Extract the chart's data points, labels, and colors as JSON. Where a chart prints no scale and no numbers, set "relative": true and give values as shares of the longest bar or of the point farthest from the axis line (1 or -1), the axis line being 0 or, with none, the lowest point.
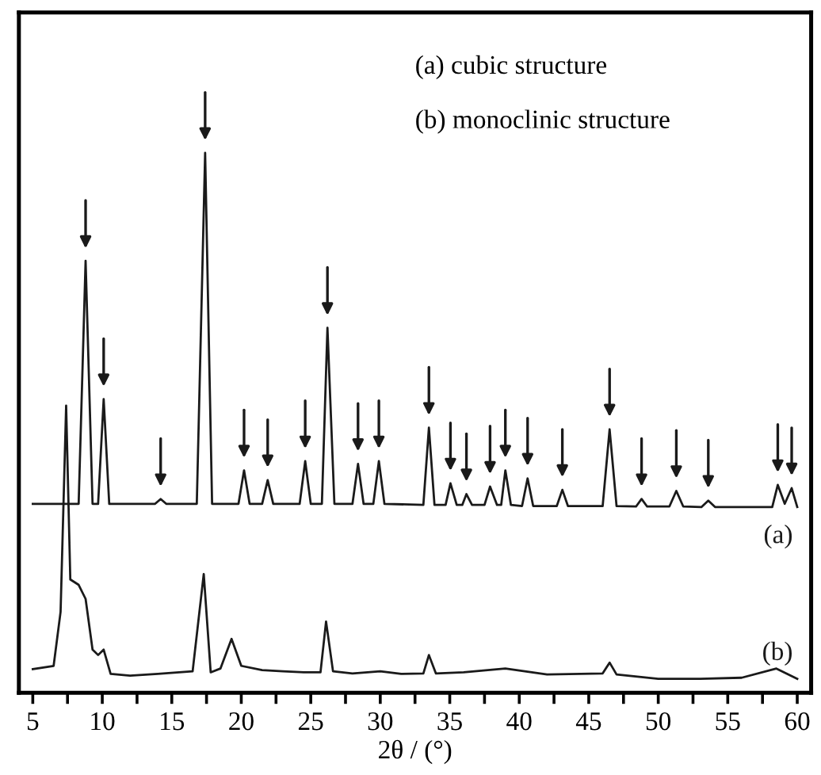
{
  "chart_data": {
    "type": "line",
    "relative": true,
    "xlabel": "2θ / (°)",
    "annotations": [
      "(a) cubic structure",
      "(b) monoclinic structure"
    ],
    "xlim": [
      4,
      61
    ],
    "xticks": [
      5,
      {
        "value": 7.5,
        "label": null
      },
      10,
      {
        "value": 12.5,
        "label": null
      },
      15,
      {
        "value": 17.5,
        "label": null
      },
      20,
      {
        "value": 22.5,
        "label": null
      },
      25,
      {
        "value": 27.5,
        "label": null
      },
      30,
      {
        "value": 32.5,
        "label": null
      },
      35,
      {
        "value": 37.5,
        "label": null
      },
      40,
      {
        "value": 42.5,
        "label": null
      },
      45,
      {
        "value": 47.5,
        "label": null
      },
      50,
      {
        "value": 52.5,
        "label": null
      },
      55,
      {
        "value": 57.5,
        "label": null
      },
      60
    ],
    "grid": false,
    "legend": false,
    "marker": "none",
    "line_style": "solid",
    "series": [
      {
        "name": "(a)",
        "color": "#1a1a1a",
        "x": [
          5,
          8.3,
          8.8,
          9.3,
          9.7,
          10.1,
          10.5,
          13.8,
          14.2,
          14.6,
          16.8,
          17.4,
          17.9,
          19.8,
          20.2,
          20.6,
          21.5,
          21.9,
          22.3,
          24.2,
          24.6,
          25.0,
          25.8,
          26.2,
          26.7,
          28.0,
          28.4,
          28.8,
          29.5,
          29.9,
          30.3,
          33.1,
          33.5,
          33.9,
          34.7,
          35.05,
          35.5,
          35.9,
          36.2,
          36.6,
          37.5,
          37.9,
          38.4,
          38.7,
          39.0,
          39.4,
          40.2,
          40.6,
          41.0,
          42.7,
          43.1,
          43.5,
          46.0,
          46.5,
          47.0,
          48.4,
          48.8,
          49.2,
          50.8,
          51.3,
          51.8,
          53.1,
          53.6,
          54.1,
          58.2,
          58.6,
          59.1,
          59.6,
          60
        ],
        "values": [
          0.35,
          0.35,
          0.8,
          0.35,
          0.35,
          0.544,
          0.35,
          0.35,
          0.359,
          0.35,
          0.35,
          1.0,
          0.35,
          0.35,
          0.412,
          0.35,
          0.35,
          0.394,
          0.35,
          0.35,
          0.429,
          0.35,
          0.35,
          0.676,
          0.35,
          0.35,
          0.424,
          0.35,
          0.35,
          0.429,
          0.35,
          0.348,
          0.491,
          0.348,
          0.348,
          0.388,
          0.348,
          0.348,
          0.368,
          0.348,
          0.348,
          0.382,
          0.348,
          0.348,
          0.412,
          0.348,
          0.346,
          0.397,
          0.346,
          0.346,
          0.376,
          0.346,
          0.346,
          0.488,
          0.346,
          0.345,
          0.359,
          0.345,
          0.345,
          0.374,
          0.345,
          0.344,
          0.356,
          0.344,
          0.344,
          0.385,
          0.35,
          0.379,
          0.344
        ]
      },
      {
        "name": "(b)",
        "color": "#1a1a1a",
        "x": [
          5,
          6.5,
          7.0,
          7.4,
          7.7,
          8.3,
          8.8,
          9.3,
          9.7,
          10.1,
          10.6,
          12,
          14,
          16.5,
          17.3,
          17.8,
          18.5,
          19.3,
          20,
          21.5,
          23,
          24.5,
          25.7,
          26.1,
          26.6,
          28,
          30,
          31.5,
          33.1,
          33.5,
          34,
          36,
          39,
          42,
          46,
          46.5,
          47,
          50,
          53,
          56,
          58.5,
          60
        ],
        "values": [
          0.044,
          0.05,
          0.15,
          0.532,
          0.21,
          0.2,
          0.174,
          0.08,
          0.07,
          0.08,
          0.035,
          0.032,
          0.035,
          0.04,
          0.22,
          0.038,
          0.045,
          0.1,
          0.05,
          0.042,
          0.04,
          0.038,
          0.038,
          0.132,
          0.04,
          0.036,
          0.04,
          0.035,
          0.036,
          0.07,
          0.036,
          0.038,
          0.045,
          0.034,
          0.036,
          0.056,
          0.034,
          0.026,
          0.026,
          0.028,
          0.045,
          0.026
        ]
      }
    ]
  }
}
